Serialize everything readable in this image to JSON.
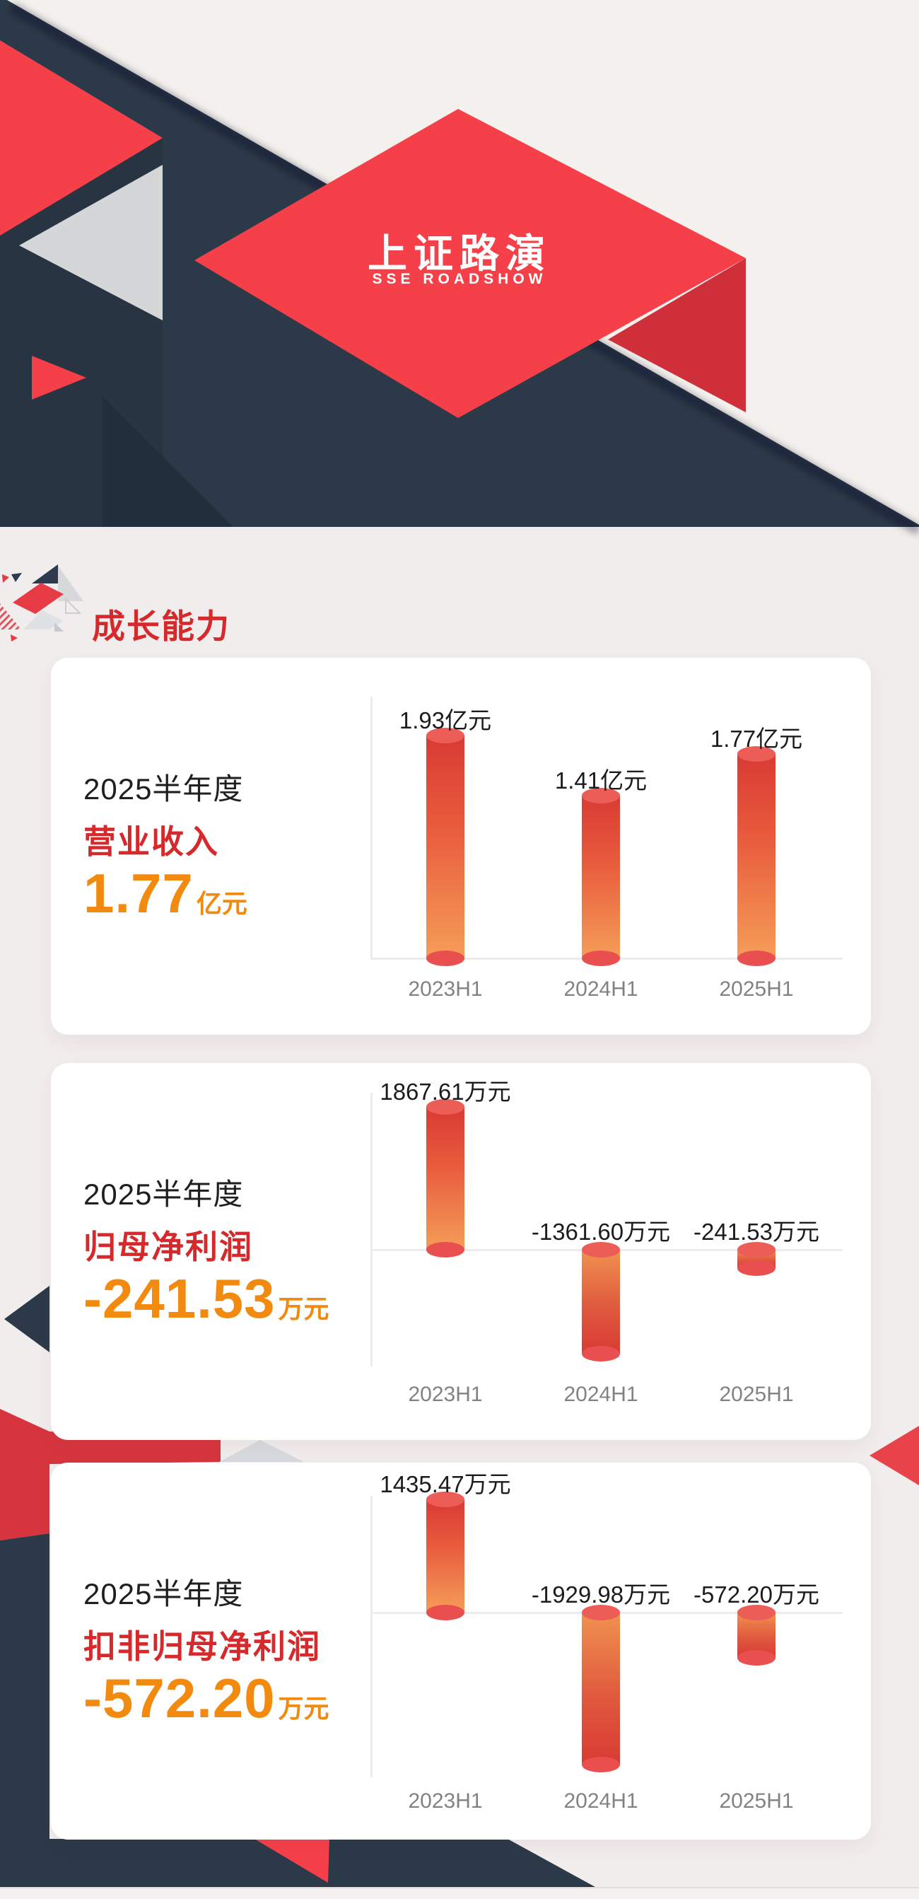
{
  "header": {
    "logo_title": "上证路演",
    "logo_subtitle": "SSE ROADSHOW"
  },
  "section": {
    "title": "成长能力"
  },
  "cards": [
    {
      "period": "2025半年度",
      "metric": "营业收入",
      "value": "1.77",
      "unit": "亿元"
    },
    {
      "period": "2025半年度",
      "metric": "归母净利润",
      "value": "-241.53",
      "unit": "万元"
    },
    {
      "period": "2025半年度",
      "metric": "扣非归母净利润",
      "value": "-572.20",
      "unit": "万元"
    }
  ],
  "chart_data": [
    {
      "type": "bar",
      "title": "营业收入",
      "unit": "亿元",
      "categories": [
        "2023H1",
        "2024H1",
        "2025H1"
      ],
      "values": [
        1.93,
        1.41,
        1.77
      ],
      "value_labels": [
        "1.93亿元",
        "1.41亿元",
        "1.77亿元"
      ],
      "ylim": [
        0,
        1.93
      ],
      "grid": false,
      "legend": "none"
    },
    {
      "type": "bar",
      "title": "归母净利润",
      "unit": "万元",
      "categories": [
        "2023H1",
        "2024H1",
        "2025H1"
      ],
      "values": [
        1867.61,
        -1361.6,
        -241.53
      ],
      "value_labels": [
        "1867.61万元",
        "-1361.60万元",
        "-241.53万元"
      ],
      "ylim": [
        -1361.6,
        1867.61
      ],
      "grid": false,
      "legend": "none"
    },
    {
      "type": "bar",
      "title": "扣非归母净利润",
      "unit": "万元",
      "categories": [
        "2023H1",
        "2024H1",
        "2025H1"
      ],
      "values": [
        1435.47,
        -1929.98,
        -572.2
      ],
      "value_labels": [
        "1435.47万元",
        "-1929.98万元",
        "-572.20万元"
      ],
      "ylim": [
        -1929.98,
        1435.47
      ],
      "grid": false,
      "legend": "none"
    }
  ],
  "colors": {
    "title_red": "#d5292b",
    "number_orange": "#f28a10",
    "bar_gradient_red": "#d93a33",
    "bar_gradient_orange": "#f59d58",
    "bar_ellipse": "#ed5d58",
    "navy": "#2c3949",
    "bright_red": "#f5404a",
    "ribbon_red": "#d6353e",
    "page_bg": "#f1edec",
    "header_bg": "#f3f0ee",
    "axis_gray": "#ececec",
    "xlabel_gray": "#828282",
    "value_label_black": "#1c1c1c"
  }
}
